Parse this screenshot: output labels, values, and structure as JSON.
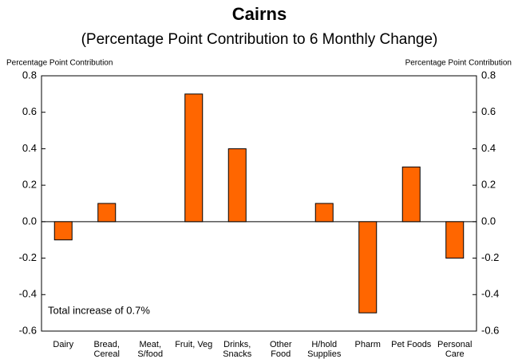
{
  "chart_data": {
    "type": "bar",
    "title": "Cairns",
    "subtitle": "(Percentage Point Contribution to 6 Monthly Change)",
    "ylabel": "Percentage Point Contribution",
    "y2label": "Percentage Point Contribution",
    "annotation": "Total increase of 0.7%",
    "categories": [
      "Dairy",
      "Bread,\nCereal",
      "Meat,\nS/food",
      "Fruit, Veg",
      "Drinks,\nSnacks",
      "Other\nFood",
      "H/hold\nSupplies",
      "Pharm",
      "Pet Foods",
      "Personal\nCare"
    ],
    "values": [
      -0.1,
      0.1,
      0,
      0.7,
      0.4,
      0,
      0.1,
      -0.5,
      0.3,
      -0.2
    ],
    "color": "#ff6600",
    "ylim": [
      -0.6,
      0.8
    ],
    "yticks": [
      -0.6,
      -0.4,
      -0.2,
      {
        "value": 0,
        "label": "0.0"
      },
      0.2,
      0.4,
      0.6,
      0.8
    ],
    "y2lim": [
      -0.6,
      0.8
    ],
    "y2ticks": [
      -0.6,
      -0.4,
      -0.2,
      {
        "value": 0,
        "label": "0.0"
      },
      0.2,
      0.4,
      0.6,
      0.8
    ],
    "grid": false
  }
}
